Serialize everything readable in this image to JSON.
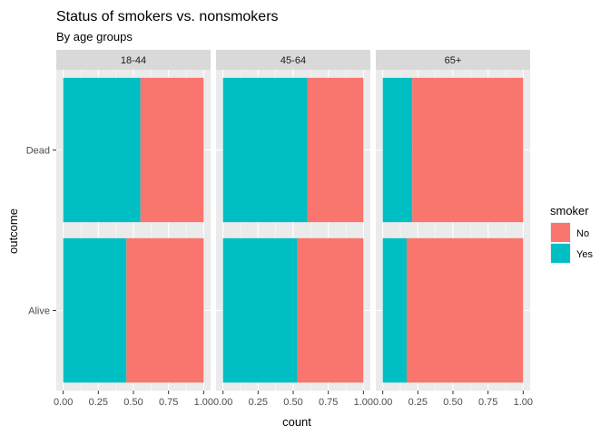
{
  "chart_data": {
    "type": "bar",
    "orientation": "horizontal",
    "position": "fill",
    "title": "Status of smokers vs. nonsmokers",
    "subtitle": "By age groups",
    "xlabel": "count",
    "ylabel": "outcome",
    "xlim": [
      0,
      1
    ],
    "x_ticks": [
      "0.00",
      "0.25",
      "0.50",
      "0.75",
      "1.00"
    ],
    "categories": [
      "Dead",
      "Alive"
    ],
    "facets": [
      {
        "label": "18-44",
        "values": {
          "Dead": {
            "Yes": 0.55,
            "No": 0.45
          },
          "Alive": {
            "Yes": 0.45,
            "No": 0.55
          }
        }
      },
      {
        "label": "45-64",
        "values": {
          "Dead": {
            "Yes": 0.6,
            "No": 0.4
          },
          "Alive": {
            "Yes": 0.53,
            "No": 0.47
          }
        }
      },
      {
        "label": "65+",
        "values": {
          "Dead": {
            "Yes": 0.21,
            "No": 0.79
          },
          "Alive": {
            "Yes": 0.17,
            "No": 0.83
          }
        }
      }
    ],
    "legend": {
      "title": "smoker",
      "position": "right",
      "items": [
        {
          "name": "No",
          "color": "#F8766D"
        },
        {
          "name": "Yes",
          "color": "#00BFC4"
        }
      ]
    },
    "grid": true,
    "panel_background": "#EBEBEB",
    "strip_background": "#D9D9D9"
  }
}
